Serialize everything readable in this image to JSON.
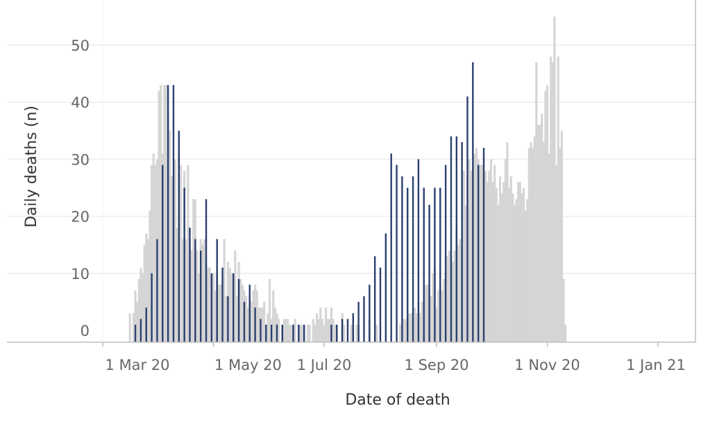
{
  "chart_data": {
    "type": "bar",
    "title": "",
    "xlabel": "Date of death",
    "ylabel": "Daily deaths (n)",
    "ylim": [
      0,
      55
    ],
    "grid": true,
    "legend": "none",
    "x_ticks": [
      {
        "date": "2020-03-01",
        "label": "1 Mar 20"
      },
      {
        "date": "2020-05-01",
        "label": "1 May 20"
      },
      {
        "date": "2020-07-01",
        "label": "1 Jul 20"
      },
      {
        "date": "2020-09-01",
        "label": "1 Sep 20"
      },
      {
        "date": "2020-11-01",
        "label": "1 Nov 20"
      },
      {
        "date": "2021-01-01",
        "label": "1 Jan 21"
      }
    ],
    "y_ticks": [
      0,
      10,
      20,
      30,
      40,
      50
    ],
    "colors": {
      "daily": "#d5d5d5",
      "weekly": "#2b3f6e",
      "grid": "#ececec",
      "axis": "#bdbdbd",
      "text": "#666666",
      "label": "#333333"
    },
    "series": [
      {
        "start_date": "2020-03-16",
        "values": [
          3,
          0,
          3,
          7,
          5,
          9,
          11,
          10,
          15,
          17,
          16,
          21,
          29,
          31,
          29,
          30,
          42,
          43,
          31,
          43,
          43,
          38,
          35,
          27,
          25,
          30,
          18,
          31,
          29,
          16,
          28,
          16,
          29,
          16,
          14,
          23,
          23,
          14,
          10,
          16,
          15,
          16,
          12,
          11,
          11,
          6,
          10,
          7,
          10,
          8,
          8,
          6,
          16,
          6,
          12,
          11,
          10,
          6,
          14,
          6,
          12,
          9,
          8,
          7,
          6,
          4,
          6,
          5,
          7,
          8,
          7,
          4,
          4,
          4,
          5,
          1,
          3,
          9,
          2,
          7,
          4,
          3,
          2,
          0,
          1,
          2,
          2,
          2,
          1,
          1,
          1,
          2,
          0,
          1,
          1,
          1,
          0,
          0,
          1,
          1,
          0,
          2,
          1,
          3,
          2,
          4,
          2,
          1,
          4,
          2,
          2,
          4,
          2,
          1,
          1,
          0,
          0,
          3,
          1,
          0,
          0,
          0,
          1,
          1,
          0,
          1,
          1,
          0,
          0,
          0,
          0,
          0,
          2,
          0,
          0,
          0,
          1,
          0,
          0,
          0,
          0,
          0,
          0,
          0,
          0,
          0,
          0,
          0,
          0,
          1,
          1,
          2,
          2,
          1,
          3,
          3,
          2,
          4,
          3,
          5,
          3,
          5,
          4,
          8,
          8,
          5,
          6,
          10,
          11,
          4,
          7,
          8,
          7,
          9,
          10,
          13,
          14,
          13,
          12,
          14,
          18,
          15,
          16,
          14,
          28,
          22,
          27,
          30,
          28,
          27,
          31,
          32,
          30,
          29,
          29,
          27,
          28,
          26,
          28,
          30,
          26,
          29,
          25,
          22,
          27,
          24,
          26,
          30,
          33,
          25,
          27,
          24,
          22,
          23,
          26,
          26,
          24,
          25,
          21,
          23,
          32,
          33,
          32,
          34,
          47,
          36,
          36,
          38,
          33,
          42,
          43,
          31,
          48,
          47,
          55,
          29,
          48,
          32,
          35,
          9,
          1
        ]
      },
      {
        "start_date": "2020-03-19",
        "interval_days": 3,
        "values": [
          1,
          2,
          4,
          10,
          16,
          29,
          43,
          43,
          35,
          25,
          18,
          16,
          14,
          23,
          10,
          16,
          11,
          6,
          10,
          9,
          5,
          8,
          4,
          2,
          1,
          1,
          1,
          1,
          0,
          1,
          1,
          1,
          0,
          0,
          0,
          0,
          1,
          1,
          2,
          2,
          3,
          5,
          6,
          8,
          13,
          11,
          17,
          31,
          29,
          27,
          25,
          27,
          30,
          25,
          22,
          25,
          25,
          29,
          34,
          34,
          33,
          41,
          47,
          29,
          32
        ]
      }
    ]
  }
}
